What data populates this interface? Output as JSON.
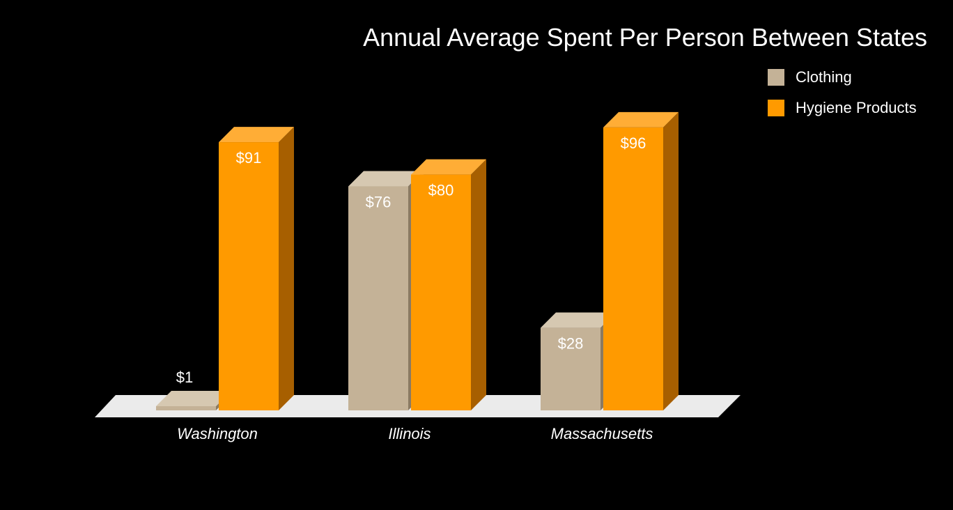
{
  "chart_data": {
    "type": "bar",
    "title": "Annual Average Spent Per Person Between States",
    "categories": [
      "Washington",
      "Illinois",
      "Massachusetts"
    ],
    "series": [
      {
        "name": "Clothing",
        "color": "#c4b297",
        "values": [
          1,
          76,
          28
        ],
        "labels": [
          "$1",
          "$76",
          "$28"
        ]
      },
      {
        "name": "Hygiene Products",
        "color": "#ff9a00",
        "values": [
          91,
          80,
          96
        ],
        "labels": [
          "$91",
          "$80",
          "$96"
        ]
      }
    ],
    "ylim": [
      0,
      100
    ],
    "grid": false,
    "legend_position": "top-right",
    "style": "3d"
  }
}
